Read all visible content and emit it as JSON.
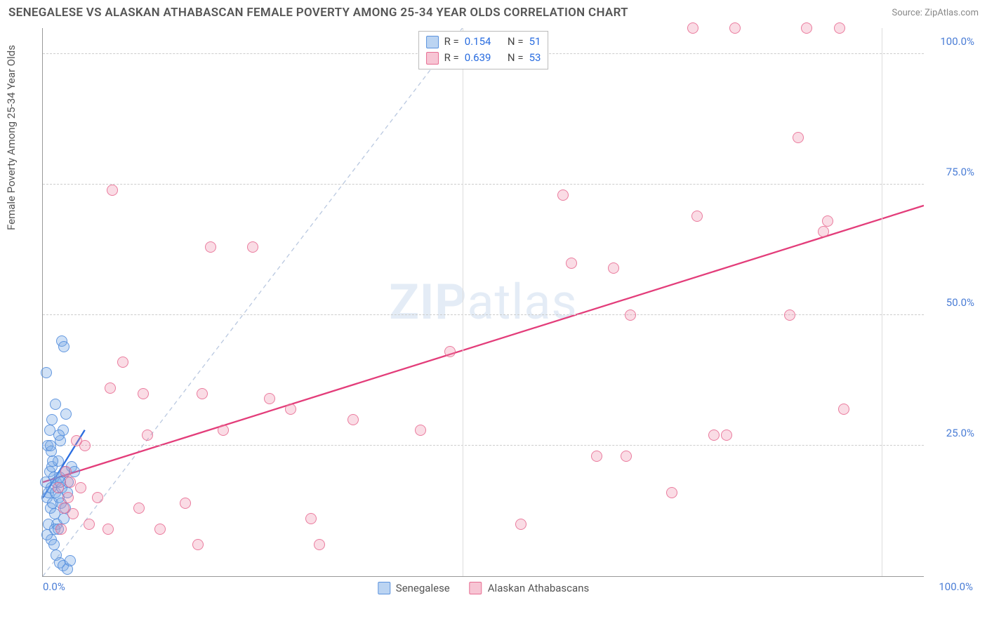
{
  "header": {
    "title": "SENEGALESE VS ALASKAN ATHABASCAN FEMALE POVERTY AMONG 25-34 YEAR OLDS CORRELATION CHART",
    "source_label": "Source: ZipAtlas.com"
  },
  "chart": {
    "type": "scatter",
    "ylabel": "Female Poverty Among 25-34 Year Olds",
    "xlim": [
      0,
      105
    ],
    "ylim": [
      0,
      105
    ],
    "x_ticks": [
      {
        "v": 0,
        "label": "0.0%"
      },
      {
        "v": 50,
        "label": ""
      },
      {
        "v": 100,
        "label": "100.0%"
      }
    ],
    "y_ticks": [
      {
        "v": 25,
        "label": "25.0%"
      },
      {
        "v": 50,
        "label": "50.0%"
      },
      {
        "v": 75,
        "label": "75.0%"
      },
      {
        "v": 100,
        "label": "100.0%"
      }
    ],
    "y_grid": [
      25,
      50,
      75,
      100
    ],
    "x_grid": [
      50,
      100
    ],
    "background_color": "#ffffff",
    "grid_color": "#cccccc",
    "axis_text_color": "#4a7dd6",
    "reference_line": {
      "x1": 0,
      "y1": 0,
      "x2": 50,
      "y2": 105,
      "stroke": "#b9c8e0",
      "dash": "6,5",
      "width": 1.3
    },
    "watermark": {
      "bold": "ZIP",
      "rest": "atlas"
    },
    "series": [
      {
        "key": "senegalese",
        "label": "Senegalese",
        "marker_fill": "rgba(120,170,230,0.35)",
        "marker_stroke": "rgba(80,140,220,0.85)",
        "marker_radius": 8,
        "R": "0.154",
        "N": "51",
        "fit_line": {
          "x1": 0,
          "y1": 15,
          "x2": 5,
          "y2": 28,
          "stroke": "#2a6de0",
          "width": 2.3
        },
        "points": [
          [
            0.3,
            18
          ],
          [
            0.5,
            15
          ],
          [
            0.7,
            16
          ],
          [
            0.8,
            20
          ],
          [
            0.9,
            13
          ],
          [
            1.0,
            17
          ],
          [
            1.1,
            21
          ],
          [
            1.2,
            14
          ],
          [
            1.3,
            19
          ],
          [
            1.4,
            12
          ],
          [
            1.5,
            16
          ],
          [
            1.6,
            18
          ],
          [
            1.7,
            10
          ],
          [
            1.8,
            22
          ],
          [
            1.9,
            15
          ],
          [
            2.0,
            19
          ],
          [
            2.1,
            26
          ],
          [
            2.2,
            14
          ],
          [
            2.3,
            17
          ],
          [
            2.4,
            28
          ],
          [
            2.5,
            11
          ],
          [
            2.6,
            20
          ],
          [
            2.7,
            13
          ],
          [
            2.8,
            31
          ],
          [
            2.9,
            16
          ],
          [
            3.0,
            18
          ],
          [
            0.4,
            39
          ],
          [
            1.0,
            7
          ],
          [
            1.3,
            6
          ],
          [
            1.6,
            4
          ],
          [
            2.0,
            2.5
          ],
          [
            2.4,
            2
          ],
          [
            2.9,
            1.3
          ],
          [
            3.3,
            3
          ],
          [
            0.6,
            25
          ],
          [
            0.8,
            28
          ],
          [
            1.0,
            24
          ],
          [
            2.3,
            45
          ],
          [
            2.5,
            44
          ],
          [
            1.1,
            30
          ],
          [
            1.5,
            33
          ],
          [
            0.5,
            8
          ],
          [
            0.7,
            10
          ],
          [
            1.4,
            9
          ],
          [
            1.8,
            9
          ],
          [
            3.4,
            21
          ],
          [
            3.8,
            20
          ],
          [
            1.2,
            22
          ],
          [
            0.9,
            25
          ],
          [
            1.9,
            27
          ],
          [
            2.1,
            18
          ]
        ]
      },
      {
        "key": "athabascan",
        "label": "Alaskan Athabascans",
        "marker_fill": "rgba(240,140,170,0.30)",
        "marker_stroke": "rgba(230,100,140,0.8)",
        "marker_radius": 8,
        "R": "0.639",
        "N": "53",
        "fit_line": {
          "x1": 0,
          "y1": 18,
          "x2": 105,
          "y2": 71,
          "stroke": "#e33d7a",
          "width": 2.3
        },
        "points": [
          [
            1.8,
            17
          ],
          [
            2.2,
            9
          ],
          [
            2.5,
            13
          ],
          [
            2.8,
            20
          ],
          [
            3.0,
            15
          ],
          [
            3.3,
            18
          ],
          [
            3.6,
            12
          ],
          [
            4.5,
            17
          ],
          [
            5.0,
            25
          ],
          [
            5.5,
            10
          ],
          [
            6.5,
            15
          ],
          [
            7.8,
            9
          ],
          [
            8.0,
            36
          ],
          [
            4.0,
            26
          ],
          [
            8.3,
            74
          ],
          [
            9.5,
            41
          ],
          [
            11.5,
            13
          ],
          [
            12.0,
            35
          ],
          [
            12.5,
            27
          ],
          [
            14.0,
            9
          ],
          [
            17.0,
            14
          ],
          [
            18.5,
            6
          ],
          [
            19.0,
            35
          ],
          [
            20.0,
            63
          ],
          [
            21.5,
            28
          ],
          [
            25.0,
            63
          ],
          [
            27.0,
            34
          ],
          [
            29.5,
            32
          ],
          [
            32.0,
            11
          ],
          [
            33.0,
            6
          ],
          [
            37.0,
            30
          ],
          [
            45.0,
            28
          ],
          [
            48.5,
            43
          ],
          [
            57.0,
            10
          ],
          [
            62.0,
            73
          ],
          [
            63.0,
            60
          ],
          [
            66.0,
            23
          ],
          [
            68.0,
            59
          ],
          [
            69.5,
            23
          ],
          [
            70.0,
            50
          ],
          [
            77.5,
            105
          ],
          [
            78.0,
            69
          ],
          [
            80.0,
            27
          ],
          [
            81.5,
            27
          ],
          [
            82.5,
            105
          ],
          [
            89.0,
            50
          ],
          [
            90.0,
            84
          ],
          [
            91.0,
            105
          ],
          [
            93.0,
            66
          ],
          [
            93.5,
            68
          ],
          [
            95.0,
            105
          ],
          [
            95.5,
            32
          ],
          [
            75.0,
            16
          ]
        ]
      }
    ],
    "bottom_legend": [
      {
        "swatch": "a",
        "label": "Senegalese"
      },
      {
        "swatch": "b",
        "label": "Alaskan Athabascans"
      }
    ]
  }
}
